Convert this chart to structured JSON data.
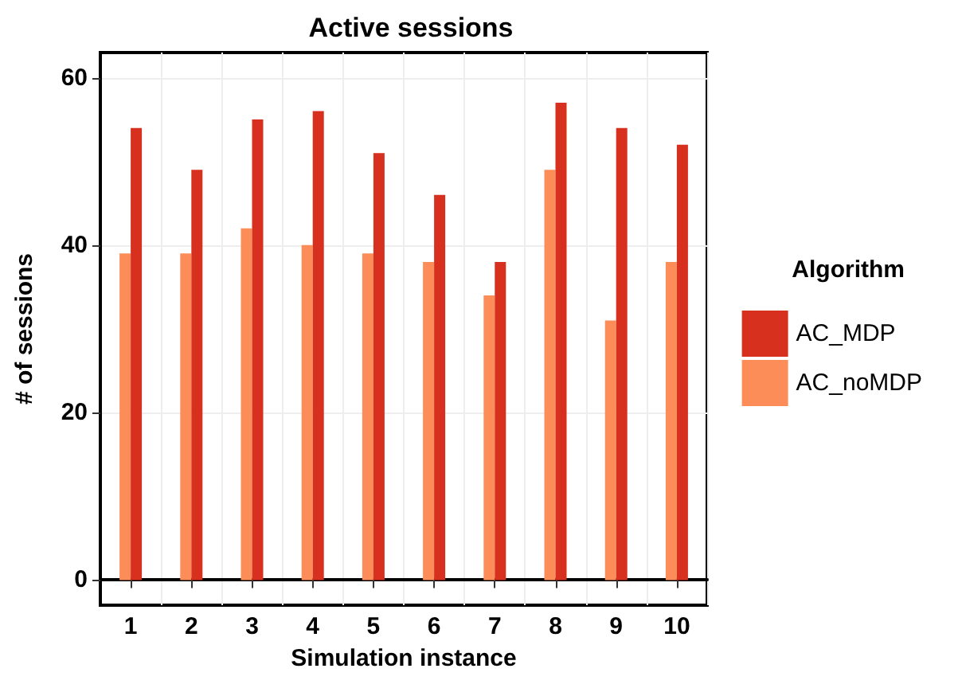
{
  "chart_data": {
    "type": "bar",
    "title": "Active sessions",
    "xlabel": "Simulation instance",
    "ylabel": "# of sessions",
    "legend_title": "Algorithm",
    "categories": [
      "1",
      "2",
      "3",
      "4",
      "5",
      "6",
      "7",
      "8",
      "9",
      "10"
    ],
    "series": [
      {
        "name": "AC_noMDP",
        "color": "#fc8d59",
        "values": [
          39,
          39,
          42,
          40,
          39,
          38,
          34,
          49,
          31,
          38
        ]
      },
      {
        "name": "AC_MDP",
        "color": "#d7301f",
        "values": [
          54,
          49,
          55,
          56,
          51,
          46,
          38,
          57,
          54,
          52
        ]
      }
    ],
    "ylim": [
      -3,
      63
    ],
    "yticks": [
      0,
      20,
      40,
      60
    ],
    "grid": true,
    "legend": "right"
  }
}
